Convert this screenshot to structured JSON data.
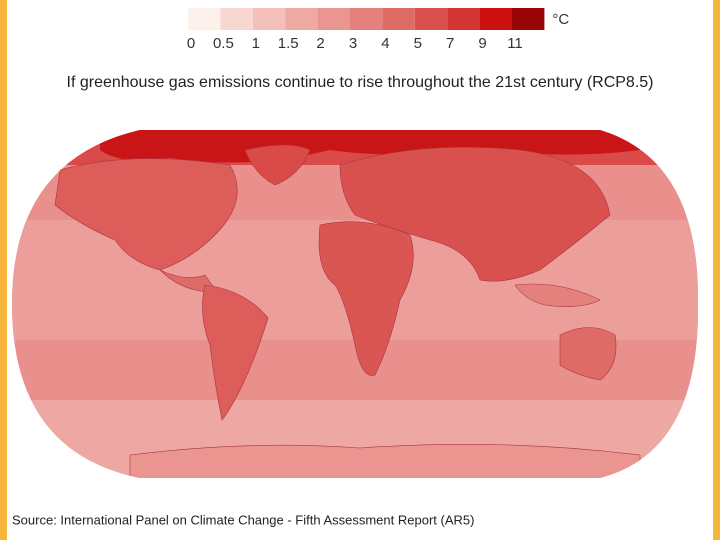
{
  "legend": {
    "labels": [
      "0",
      "0.5",
      "1",
      "1.5",
      "2",
      "3",
      "4",
      "5",
      "7",
      "9",
      "11"
    ],
    "colors": [
      "#fdf1eb",
      "#f8d7d0",
      "#f3c0b9",
      "#eea9a3",
      "#ea9590",
      "#e5817c",
      "#df6b67",
      "#d9514e",
      "#d33434",
      "#cc1010",
      "#990505"
    ],
    "unit": "°C"
  },
  "title": "If greenhouse gas emissions continue to rise throughout the 21st century (RCP8.5)",
  "source": "Source: International Panel on Climate Change - Fifth Assessment Report (AR5)"
}
